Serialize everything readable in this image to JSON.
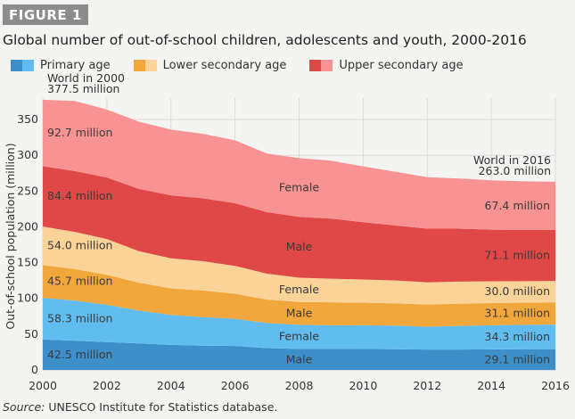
{
  "figure_label": "FIGURE 1",
  "source_prefix": "Source:",
  "source_text": " UNESCO Institute for Statistics database.",
  "colors": {
    "primary_male": "#3d8fc9",
    "primary_female": "#61bdf0",
    "lower_male": "#f2a73c",
    "lower_female": "#fad398",
    "upper_male": "#e04848",
    "upper_female": "#f99393",
    "grid": "#d9d9d9"
  },
  "chart_data": {
    "type": "area",
    "title": "Global number of out-of-school children, adolescents and youth, 2000-2016",
    "ylabel": "Out-of-school population (million)",
    "xlabel": "",
    "xlim": [
      2000,
      2016
    ],
    "ylim": [
      0,
      380
    ],
    "grid": true,
    "xticks": [
      2000,
      2002,
      2004,
      2006,
      2008,
      2010,
      2012,
      2014,
      2016
    ],
    "yticks": [
      0,
      50,
      100,
      150,
      200,
      250,
      300,
      350
    ],
    "legend_position": "top",
    "legend": [
      {
        "label": "Primary age",
        "colors": [
          "#3d8fc9",
          "#61bdf0"
        ]
      },
      {
        "label": "Lower secondary age",
        "colors": [
          "#f2a73c",
          "#fad398"
        ]
      },
      {
        "label": "Upper secondary age",
        "colors": [
          "#e04848",
          "#f99393"
        ]
      }
    ],
    "x": [
      2000,
      2001,
      2002,
      2003,
      2004,
      2005,
      2006,
      2007,
      2008,
      2009,
      2010,
      2011,
      2012,
      2013,
      2014,
      2015,
      2016
    ],
    "series": [
      {
        "key": "primary_male",
        "color": "#3d8fc9",
        "values": [
          42.5,
          41.0,
          39.0,
          37.0,
          35.0,
          34.0,
          33.5,
          30.5,
          29.5,
          29.5,
          29.5,
          29.0,
          28.5,
          28.5,
          28.8,
          29.0,
          29.1
        ]
      },
      {
        "key": "primary_female",
        "color": "#61bdf0",
        "values": [
          58.3,
          56.0,
          52.0,
          46.0,
          42.0,
          40.0,
          38.0,
          35.0,
          33.5,
          33.0,
          33.0,
          33.0,
          32.0,
          33.0,
          33.7,
          34.0,
          34.3
        ]
      },
      {
        "key": "lower_male",
        "color": "#f2a73c",
        "values": [
          45.7,
          44.0,
          42.0,
          39.0,
          37.0,
          37.0,
          35.0,
          33.0,
          32.0,
          32.0,
          31.5,
          31.0,
          31.0,
          31.0,
          31.0,
          31.0,
          31.1
        ]
      },
      {
        "key": "lower_female",
        "color": "#fad398",
        "values": [
          54.0,
          52.0,
          50.0,
          44.0,
          42.0,
          41.0,
          39.0,
          36.0,
          34.0,
          33.0,
          32.5,
          32.0,
          31.0,
          31.0,
          30.5,
          30.2,
          30.0
        ]
      },
      {
        "key": "upper_male",
        "color": "#e04848",
        "values": [
          84.4,
          85.0,
          86.0,
          87.0,
          88.0,
          88.0,
          87.5,
          86.0,
          85.0,
          84.0,
          80.0,
          77.0,
          75.0,
          74.0,
          72.0,
          71.5,
          71.1
        ]
      },
      {
        "key": "upper_female",
        "color": "#f99393",
        "values": [
          92.7,
          98.0,
          95.0,
          94.0,
          92.0,
          90.0,
          88.0,
          82.0,
          82.0,
          81.0,
          78.0,
          75.0,
          72.0,
          70.0,
          69.0,
          68.0,
          67.4
        ]
      }
    ],
    "annotations": [
      {
        "lines": [
          "World in 2000",
          "377.5 million"
        ],
        "x": 2000,
        "y": 377.5,
        "anchor": "start"
      },
      {
        "lines": [
          "World in 2016",
          "263.0 million"
        ],
        "x": 2016,
        "y": 263.0,
        "anchor": "end"
      }
    ],
    "value_labels": [
      {
        "text": "42.5 million",
        "x": 2000,
        "y": 21.25,
        "anchor": "start"
      },
      {
        "text": "58.3 million",
        "x": 2000,
        "y": 71.7,
        "anchor": "start"
      },
      {
        "text": "45.7 million",
        "x": 2000,
        "y": 123.7,
        "anchor": "start"
      },
      {
        "text": "54.0 million",
        "x": 2000,
        "y": 173.5,
        "anchor": "start"
      },
      {
        "text": "84.4 million",
        "x": 2000,
        "y": 242.7,
        "anchor": "start"
      },
      {
        "text": "92.7 million",
        "x": 2000,
        "y": 331.2,
        "anchor": "start"
      },
      {
        "text": "29.1 million",
        "x": 2016,
        "y": 14.55,
        "anchor": "end"
      },
      {
        "text": "34.3 million",
        "x": 2016,
        "y": 46.25,
        "anchor": "end"
      },
      {
        "text": "31.1 million",
        "x": 2016,
        "y": 78.95,
        "anchor": "end"
      },
      {
        "text": "30.0 million",
        "x": 2016,
        "y": 109.5,
        "anchor": "end"
      },
      {
        "text": "71.1 million",
        "x": 2016,
        "y": 160.1,
        "anchor": "end"
      },
      {
        "text": "67.4 million",
        "x": 2016,
        "y": 229.3,
        "anchor": "end"
      }
    ],
    "sex_labels": [
      {
        "text": "Male",
        "x": 2008,
        "y": 14.5
      },
      {
        "text": "Female",
        "x": 2008,
        "y": 46.5
      },
      {
        "text": "Male",
        "x": 2008,
        "y": 79
      },
      {
        "text": "Female",
        "x": 2008,
        "y": 112
      },
      {
        "text": "Male",
        "x": 2008,
        "y": 172
      },
      {
        "text": "Female",
        "x": 2008,
        "y": 255
      }
    ]
  }
}
